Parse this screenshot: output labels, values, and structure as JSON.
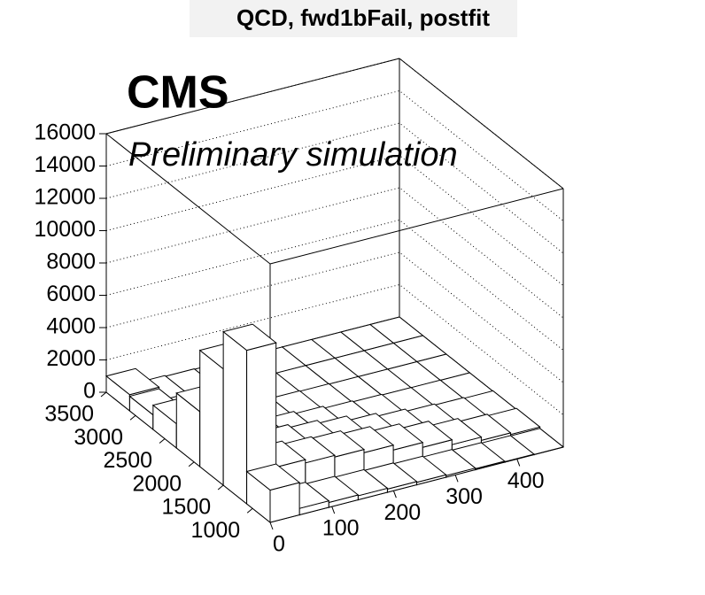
{
  "chart_data": {
    "type": "lego",
    "title": "QCD, fwd1bFail, postfit",
    "annotations": [
      "CMS",
      "Preliminary simulation"
    ],
    "x_bins": [
      0,
      47.5,
      95,
      142.5,
      190,
      237.5,
      285,
      332.5,
      380,
      427.5,
      475
    ],
    "y_bins": [
      700,
      1100,
      1500,
      1900,
      2300,
      2700,
      3100,
      3500
    ],
    "values": [
      [
        2000,
        400,
        300,
        250,
        200,
        150,
        100,
        60,
        30,
        10
      ],
      [
        9500,
        1800,
        1600,
        1500,
        1300,
        1000,
        700,
        400,
        200,
        100
      ],
      [
        7200,
        1400,
        1200,
        1000,
        800,
        500,
        300,
        150,
        80,
        30
      ],
      [
        3400,
        800,
        600,
        400,
        250,
        120,
        60,
        20,
        10,
        0
      ],
      [
        1500,
        300,
        200,
        120,
        60,
        30,
        10,
        5,
        0,
        0
      ],
      [
        900,
        150,
        80,
        40,
        20,
        10,
        5,
        0,
        0,
        0
      ],
      [
        1000,
        100,
        50,
        20,
        10,
        5,
        5,
        0,
        0,
        0
      ]
    ],
    "xlim": [
      0,
      475
    ],
    "ylim": [
      700,
      3500
    ],
    "zlim": [
      0,
      16000
    ],
    "xticks": [
      0,
      100,
      200,
      300,
      400
    ],
    "yticks": [
      1000,
      1500,
      2000,
      2500,
      3000,
      3500
    ],
    "zticks": [
      0,
      2000,
      4000,
      6000,
      8000,
      10000,
      12000,
      14000,
      16000
    ],
    "grid": true,
    "color": "#ffffff"
  }
}
